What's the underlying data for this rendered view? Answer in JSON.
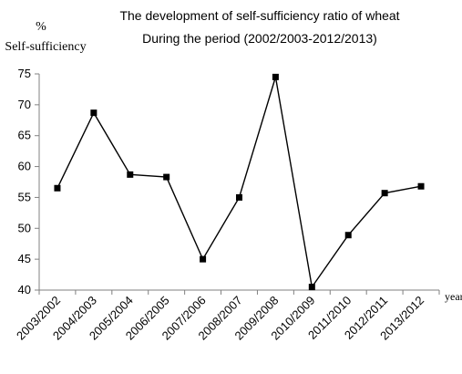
{
  "chart_data": {
    "type": "line",
    "title": [
      "The development of self-sufficiency ratio of wheat",
      "During the period (2002/2003-2012/2013)"
    ],
    "ylabel": [
      "%",
      "Self-sufficiency"
    ],
    "xlabel": "year",
    "categories": [
      "2003/2002",
      "2004/2003",
      "2005/2004",
      "2006/2005",
      "2007/2006",
      "2008/2007",
      "2009/2008",
      "2010/2009",
      "2011/2010",
      "2012/2011",
      "2013/2012"
    ],
    "series": [
      {
        "values": [
          56.5,
          68.7,
          58.7,
          58.3,
          45.0,
          55.0,
          74.5,
          40.5,
          48.9,
          55.7,
          56.8
        ]
      }
    ],
    "ylim": [
      40,
      75
    ],
    "yticks": [
      40,
      45,
      50,
      55,
      60,
      65,
      70,
      75
    ],
    "grid": false,
    "legend": "none",
    "line_color": "#000000",
    "marker": "square"
  }
}
